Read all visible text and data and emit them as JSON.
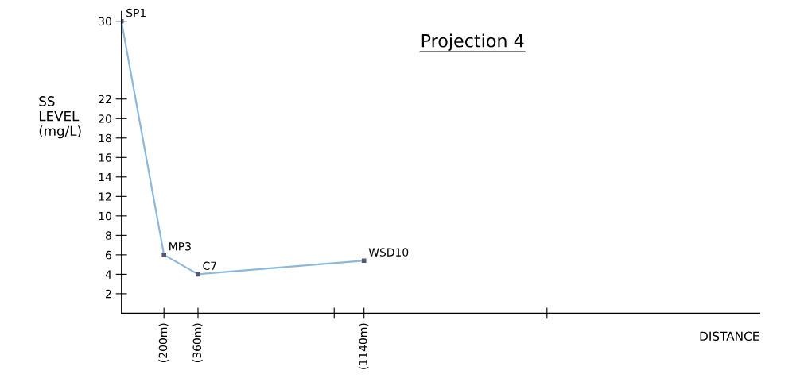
{
  "chart_data": {
    "type": "line",
    "title": "Projection 4",
    "xlabel": "DISTANCE",
    "ylabel": "SS\nLEVEL\n(mg/L)",
    "x": [
      0,
      200,
      360,
      1140
    ],
    "series": [
      {
        "color": "#8db8dc",
        "values": [
          30,
          6,
          4,
          5.4
        ]
      }
    ],
    "marker": "square",
    "line_style": "solid",
    "grid": false,
    "legend": false,
    "xlim": [
      0,
      3000
    ],
    "xticks": [
      {
        "value": 200,
        "label": "(200m)"
      },
      {
        "value": 360,
        "label": "(360m)"
      },
      {
        "value": 1000,
        "label": null
      },
      {
        "value": 1140,
        "label": "(1140m)"
      },
      {
        "value": 2000,
        "label": null
      }
    ],
    "ylim": [
      0,
      31
    ],
    "yticks": [
      2,
      4,
      6,
      8,
      10,
      12,
      14,
      16,
      18,
      20,
      22,
      30
    ],
    "annotations": [
      {
        "text": "SP1",
        "x": 0,
        "y": 30
      },
      {
        "text": "MP3",
        "x": 200,
        "y": 6
      },
      {
        "text": "C7",
        "x": 360,
        "y": 4
      },
      {
        "text": "WSD10",
        "x": 1140,
        "y": 5.4
      }
    ]
  }
}
